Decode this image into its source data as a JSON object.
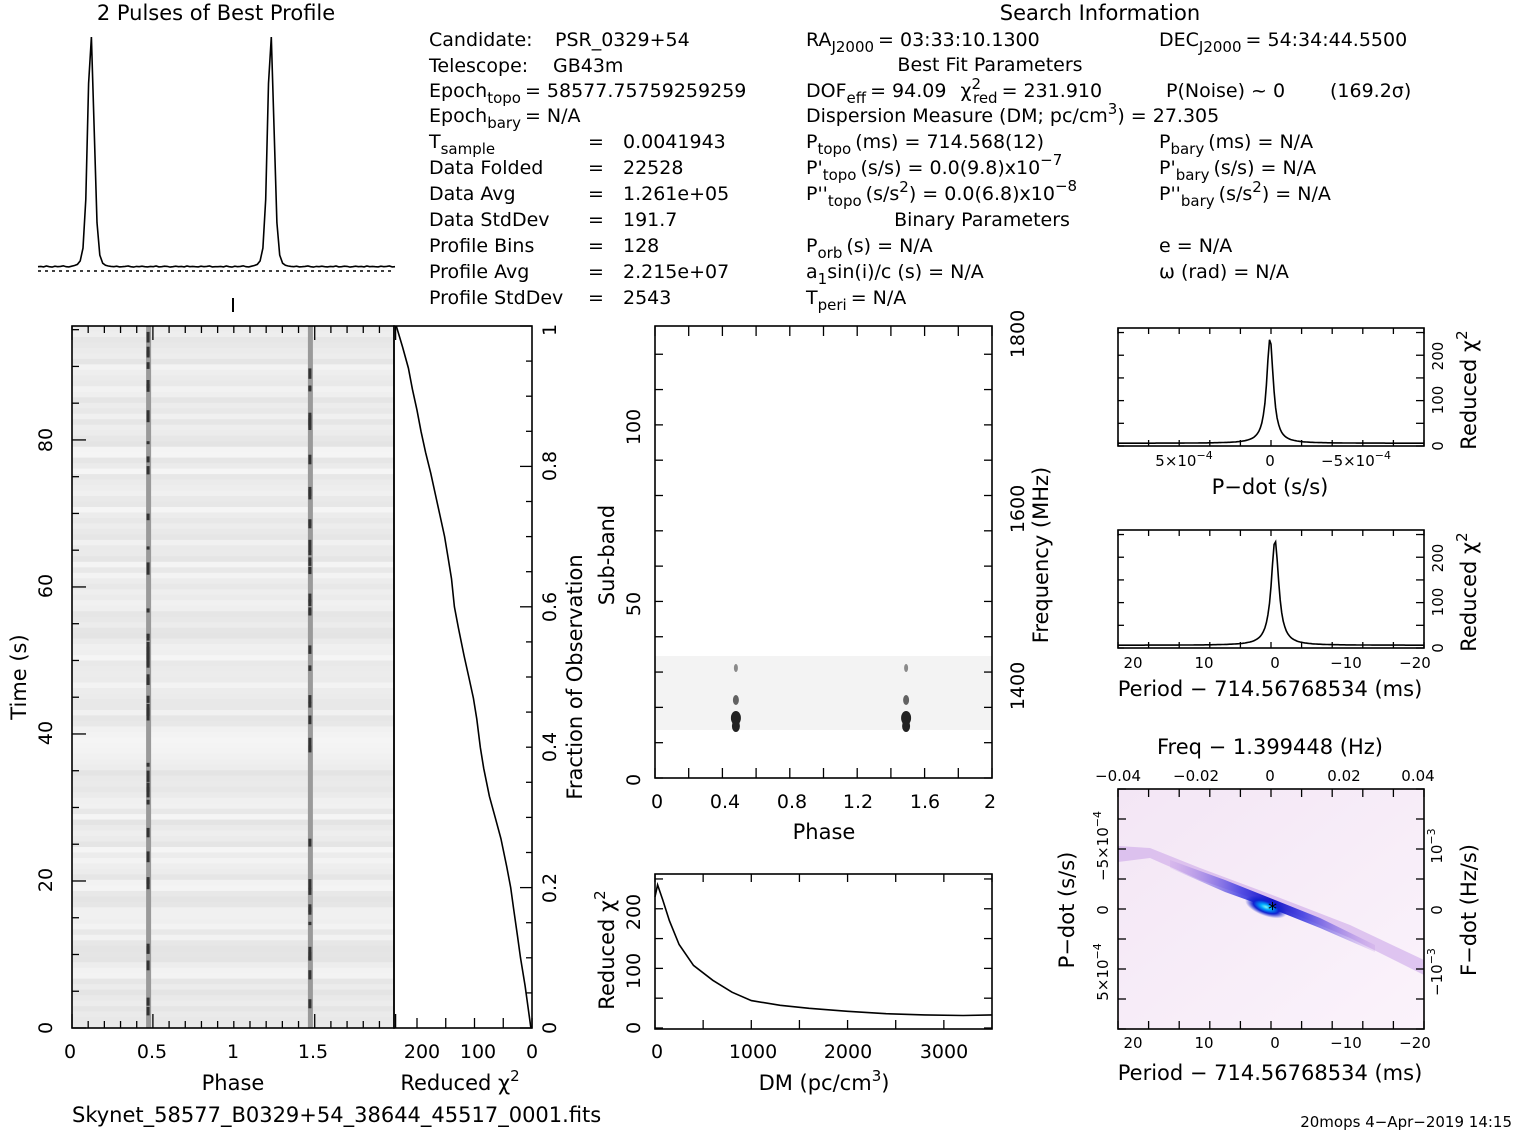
{
  "profile": {
    "title": "2 Pulses of Best Profile",
    "shape": [
      1,
      1.1,
      0.9,
      1.3,
      1,
      0.8,
      1.2,
      1,
      1.1,
      1.4,
      1,
      0.9,
      1.2,
      1.5,
      2,
      3.5,
      9,
      30,
      80,
      100,
      60,
      20,
      6,
      2.5,
      1.6,
      1.3,
      1.1,
      1,
      1.2,
      0.9,
      1,
      1.1,
      1.3,
      1,
      0.8,
      1.1,
      1,
      1.2,
      1,
      0.9,
      1.1,
      1,
      1.3,
      0.9,
      1,
      1.2,
      1.1,
      0.8,
      1,
      1.2,
      1,
      1.1,
      0.9,
      1.3,
      1,
      1.1,
      1,
      0.9,
      1.2,
      1,
      1.1,
      1.3,
      0.9,
      1
    ]
  },
  "search_info": {
    "title": "Search Information",
    "candidate_label": "Candidate:",
    "candidate": "PSR_0329+54",
    "telescope_label": "Telescope:",
    "telescope": "GB43m",
    "epoch_topo_sub": "topo",
    "epoch_topo": "= 58577.75759259259",
    "epoch_bary_sub": "bary",
    "epoch_bary": "= N/A",
    "t_sample_label": "T",
    "t_sample_sub": "sample",
    "t_sample": "0.0041943",
    "data_folded_label": "Data Folded",
    "data_folded": "22528",
    "data_avg_label": "Data Avg",
    "data_avg": "1.261e+05",
    "data_stddev_label": "Data StdDev",
    "data_stddev": "191.7",
    "profile_bins_label": "Profile Bins",
    "profile_bins": "128",
    "profile_avg_label": "Profile Avg",
    "profile_avg": "2.215e+07",
    "profile_stddev_label": "Profile StdDev",
    "profile_stddev": "2543",
    "equals": "=",
    "ra_sub": "J2000",
    "ra": "= 03:33:10.1300",
    "dec_sub": "J2000",
    "dec": "= 54:34:44.5500",
    "best_fit_title": "Best Fit Parameters",
    "dof_sub": "eff",
    "dof": "= 94.09",
    "chi_sub": "red",
    "chi": "= 231.910",
    "pnoise": "P(Noise) ~ 0",
    "sigma": "(169.2σ)",
    "dm_line": "Dispersion Measure (DM; pc/cm",
    "dm_value": ") = 27.305",
    "p_topo_sub": "topo",
    "p_topo": "(ms) =  714.568(12)",
    "p_bary_sub": "bary",
    "p_bary": "(ms) = N/A",
    "pd_topo_sub": "topo",
    "pd_topo": "(s/s) = 0.0(9.8)x10",
    "pd_topo_exp": "−7",
    "pd_bary_sub": "bary",
    "pd_bary": "(s/s) = N/A",
    "pdd_topo_sub": "topo",
    "pdd_topo_a": "(s/s",
    "pdd_topo_b": ") = 0.0(6.8)x10",
    "pdd_topo_exp": "−8",
    "pdd_bary_sub": "bary",
    "pdd_bary_a": "(s/s",
    "pdd_bary_b": ") = N/A",
    "binary_title": "Binary Parameters",
    "porb_sub": "orb",
    "porb": "(s) = N/A",
    "a1_sub": "1",
    "a1": "sin(i)/c (s) = N/A",
    "tperi_sub": "peri",
    "tperi": "= N/A",
    "e": "e = N/A",
    "omega": "ω (rad) = N/A"
  },
  "time_phase": {
    "xlabel": "Phase",
    "ylabel": "Time (s)",
    "xticks": [
      "0",
      "0.5",
      "1",
      "1.5"
    ],
    "yticks": [
      "0",
      "20",
      "40",
      "60",
      "80"
    ]
  },
  "chi_time": {
    "xlabel": "Reduced",
    "xticks": [
      "200",
      "100",
      "0"
    ],
    "ylabel": "Fraction of Observation",
    "yticks": [
      "0",
      "0.2",
      "0.4",
      "0.6",
      "0.8",
      "1"
    ]
  },
  "subband": {
    "xlabel": "Phase",
    "ylabel": "Sub-band",
    "y2label": "Frequency (MHz)",
    "xticks": [
      "0",
      "0.4",
      "0.8",
      "1.2",
      "1.6",
      "2"
    ],
    "yticks": [
      "0",
      "50",
      "100"
    ],
    "y2ticks": [
      "1400",
      "1600",
      "1800"
    ]
  },
  "dm_plot": {
    "xlabel": "DM (pc/cm",
    "ylabel": "Reduced",
    "xticks": [
      "0",
      "1000",
      "2000",
      "3000"
    ],
    "yticks": [
      "0",
      "100",
      "200"
    ]
  },
  "pdot_plot": {
    "xlabel": "P−dot (s/s)",
    "ylabel": "Reduced",
    "xticks": [
      "5×10",
      "0",
      "−5×10"
    ],
    "xticks_exp": "−4",
    "yticks": [
      "0",
      "100",
      "200"
    ]
  },
  "period_plot": {
    "xlabel": "Period − 714.56768534 (ms)",
    "ylabel": "Reduced",
    "xticks": [
      "20",
      "10",
      "0",
      "−10",
      "−20"
    ],
    "yticks": [
      "0",
      "100",
      "200"
    ]
  },
  "ppdot_plot": {
    "top_label": "Freq − 1.399448 (Hz)",
    "top_ticks": [
      "−0.04",
      "−0.02",
      "0",
      "0.02",
      "0.04"
    ],
    "xlabel": "Period − 714.56768534 (ms)",
    "xticks": [
      "20",
      "10",
      "0",
      "−10",
      "−20"
    ],
    "ylabel": "P−dot (s/s)",
    "yticks": [
      "5×10",
      "0",
      "−5×10"
    ],
    "yticks_exp": "−4",
    "y2label": "F−dot (Hz/s)",
    "y2ticks": [
      "−10",
      "0",
      "10"
    ],
    "y2ticks_exp": "−3"
  },
  "footer": {
    "filename": "Skynet_58577_B0329+54_38644_45517_0001.fits",
    "stamp": "20mops   4−Apr−2019 14:15"
  },
  "chart_data": [
    {
      "type": "line",
      "title": "2 Pulses of Best Profile",
      "x": [
        0,
        0.5,
        1,
        1.5,
        2
      ],
      "pulse_phases": [
        0.47,
        1.47
      ]
    },
    {
      "type": "heatmap",
      "xlabel": "Phase",
      "ylabel": "Time (s)",
      "xlim": [
        0,
        2
      ],
      "ylim": [
        0,
        95
      ],
      "pulse_phases": [
        0.47,
        1.47
      ]
    },
    {
      "type": "line",
      "xlabel": "Reduced χ²",
      "ylabel": "Fraction of Observation",
      "xlim": [
        0,
        240
      ],
      "ylim": [
        0,
        1
      ],
      "x": [
        236,
        225,
        215,
        208,
        200,
        193,
        185,
        176,
        168,
        160,
        152,
        146,
        140,
        135,
        128,
        118,
        110,
        102,
        96,
        90,
        84,
        74,
        64,
        54,
        44,
        37,
        32,
        25,
        20,
        12,
        2
      ],
      "y": [
        1.0,
        0.97,
        0.94,
        0.91,
        0.88,
        0.85,
        0.82,
        0.79,
        0.76,
        0.73,
        0.7,
        0.67,
        0.64,
        0.6,
        0.57,
        0.53,
        0.5,
        0.47,
        0.44,
        0.4,
        0.37,
        0.33,
        0.3,
        0.27,
        0.23,
        0.2,
        0.17,
        0.13,
        0.1,
        0.06,
        0.0
      ]
    },
    {
      "type": "heatmap",
      "xlabel": "Phase",
      "ylabel": "Sub-band",
      "xlim": [
        0,
        2
      ],
      "ylim": [
        0,
        128
      ],
      "y2label": "Frequency (MHz)",
      "active_subbands": [
        14,
        35
      ],
      "pulse_phases": [
        0.48,
        1.49
      ]
    },
    {
      "type": "line",
      "xlabel": "DM (pc/cm³)",
      "ylabel": "Reduced χ²",
      "xlim": [
        0,
        3500
      ],
      "ylim": [
        0,
        260
      ],
      "x": [
        0,
        27,
        80,
        150,
        250,
        400,
        600,
        800,
        1000,
        1300,
        1600,
        2000,
        2400,
        2800,
        3200,
        3500
      ],
      "y": [
        220,
        240,
        215,
        180,
        140,
        105,
        80,
        60,
        46,
        38,
        33,
        28,
        24,
        22,
        21,
        22
      ]
    },
    {
      "type": "line",
      "xlabel": "P-dot (s/s)",
      "ylabel": "Reduced χ²",
      "xlim": [
        0.0009,
        -0.0009
      ],
      "ylim": [
        0,
        260
      ],
      "peak_x": 0,
      "peak_y": 232
    },
    {
      "type": "line",
      "xlabel": "Period − 714.56768534 (ms)",
      "ylabel": "Reduced χ²",
      "xlim": [
        22,
        -22
      ],
      "ylim": [
        0,
        260
      ],
      "peak_x": 0,
      "peak_y": 232
    },
    {
      "type": "heatmap",
      "xlabel": "Period − 714.56768534 (ms)",
      "ylabel": "P-dot (s/s)",
      "xlim": [
        22,
        -22
      ],
      "ylim": [
        0.0009,
        -0.0009
      ],
      "peak": [
        0,
        0
      ]
    }
  ]
}
